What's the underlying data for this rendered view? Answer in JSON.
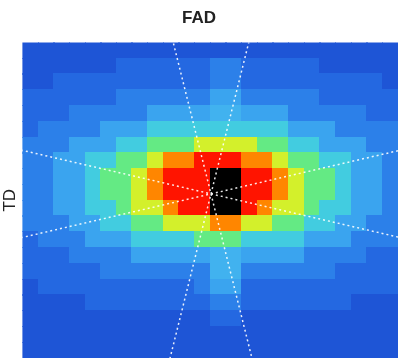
{
  "chart_data": {
    "type": "heatmap",
    "title": "FAD",
    "y_label": "TD",
    "tick_labels": false,
    "cells": [
      [
        22,
        22,
        22,
        22,
        22,
        22,
        22,
        22,
        22,
        22,
        22,
        22,
        22,
        22,
        22,
        22,
        22,
        22,
        22,
        22,
        22,
        22,
        22,
        22
      ],
      [
        22,
        22,
        22,
        22,
        22,
        22,
        27,
        27,
        27,
        27,
        27,
        27,
        32,
        32,
        27,
        27,
        27,
        27,
        27,
        22,
        22,
        22,
        22,
        22
      ],
      [
        22,
        22,
        27,
        27,
        27,
        27,
        27,
        27,
        27,
        27,
        27,
        27,
        32,
        32,
        27,
        27,
        27,
        27,
        27,
        27,
        27,
        27,
        27,
        22
      ],
      [
        27,
        27,
        27,
        27,
        27,
        27,
        32,
        32,
        32,
        32,
        32,
        32,
        38,
        38,
        32,
        32,
        32,
        32,
        32,
        27,
        27,
        27,
        27,
        27
      ],
      [
        27,
        27,
        27,
        32,
        32,
        32,
        32,
        32,
        38,
        38,
        38,
        38,
        40,
        40,
        38,
        38,
        38,
        32,
        32,
        32,
        32,
        32,
        27,
        27
      ],
      [
        27,
        32,
        32,
        32,
        32,
        38,
        38,
        38,
        45,
        45,
        45,
        45,
        45,
        45,
        45,
        45,
        45,
        38,
        38,
        38,
        32,
        32,
        32,
        32
      ],
      [
        32,
        32,
        32,
        38,
        38,
        38,
        45,
        45,
        55,
        55,
        55,
        65,
        65,
        65,
        65,
        55,
        55,
        45,
        45,
        38,
        38,
        38,
        32,
        32
      ],
      [
        32,
        32,
        38,
        38,
        45,
        45,
        55,
        55,
        65,
        78,
        78,
        88,
        88,
        88,
        78,
        78,
        65,
        55,
        55,
        45,
        45,
        38,
        38,
        32
      ],
      [
        32,
        32,
        38,
        38,
        45,
        55,
        55,
        65,
        78,
        88,
        88,
        88,
        null,
        null,
        88,
        88,
        78,
        65,
        55,
        55,
        45,
        38,
        38,
        32
      ],
      [
        32,
        32,
        38,
        38,
        45,
        55,
        55,
        65,
        78,
        88,
        88,
        88,
        null,
        null,
        88,
        88,
        78,
        65,
        55,
        55,
        45,
        38,
        38,
        32
      ],
      [
        32,
        32,
        38,
        38,
        45,
        45,
        55,
        65,
        65,
        78,
        88,
        88,
        null,
        null,
        88,
        78,
        65,
        65,
        55,
        45,
        45,
        38,
        38,
        32
      ],
      [
        32,
        32,
        32,
        38,
        38,
        45,
        45,
        55,
        55,
        65,
        65,
        65,
        78,
        78,
        65,
        65,
        55,
        55,
        45,
        45,
        38,
        38,
        32,
        32
      ],
      [
        27,
        32,
        32,
        32,
        38,
        38,
        38,
        45,
        45,
        45,
        45,
        55,
        55,
        55,
        45,
        45,
        45,
        45,
        38,
        38,
        38,
        32,
        32,
        32
      ],
      [
        27,
        27,
        27,
        32,
        32,
        32,
        32,
        38,
        38,
        38,
        38,
        38,
        40,
        40,
        38,
        38,
        38,
        38,
        32,
        32,
        32,
        32,
        27,
        27
      ],
      [
        27,
        27,
        27,
        27,
        27,
        32,
        32,
        32,
        32,
        32,
        32,
        32,
        40,
        40,
        32,
        32,
        32,
        32,
        32,
        32,
        27,
        27,
        27,
        27
      ],
      [
        22,
        27,
        27,
        27,
        27,
        27,
        27,
        27,
        27,
        27,
        27,
        32,
        38,
        38,
        27,
        27,
        27,
        27,
        27,
        27,
        27,
        27,
        27,
        27
      ],
      [
        22,
        22,
        22,
        22,
        27,
        27,
        27,
        27,
        27,
        27,
        27,
        27,
        32,
        32,
        27,
        27,
        27,
        27,
        27,
        27,
        27,
        22,
        22,
        22
      ],
      [
        22,
        22,
        22,
        22,
        22,
        22,
        22,
        22,
        22,
        22,
        22,
        22,
        27,
        27,
        22,
        22,
        22,
        22,
        22,
        22,
        22,
        22,
        22,
        22
      ],
      [
        22,
        22,
        22,
        22,
        22,
        22,
        22,
        22,
        22,
        22,
        22,
        22,
        22,
        22,
        22,
        22,
        22,
        22,
        22,
        22,
        22,
        22,
        22,
        22
      ],
      [
        22,
        22,
        22,
        22,
        22,
        22,
        22,
        22,
        22,
        22,
        22,
        22,
        22,
        22,
        22,
        22,
        22,
        22,
        22,
        22,
        22,
        22,
        22,
        22
      ]
    ]
  }
}
